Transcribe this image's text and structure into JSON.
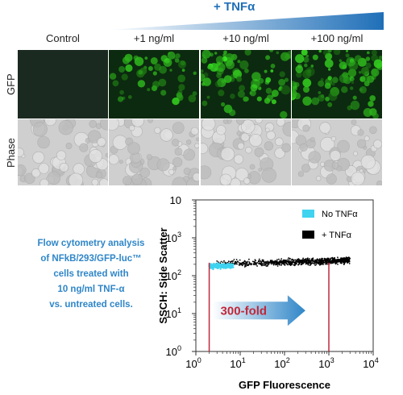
{
  "header": {
    "treatment_label": "+ TNFα"
  },
  "columns": [
    "Control",
    "+1 ng/ml",
    "+10 ng/ml",
    "+100 ng/ml"
  ],
  "rows": [
    "GFP",
    "Phase"
  ],
  "gfp_intensity": [
    0.0,
    0.45,
    0.75,
    0.85
  ],
  "caption_lines": [
    "Flow cytometry analysis",
    "of NFkB/293/GFP-luc™",
    "cells treated with",
    "10 ng/ml TNF-α",
    "vs. untreated cells."
  ],
  "plot": {
    "ylabel": "SSCH: Side Scatter",
    "xlabel": "GFP Fluorescence",
    "fold_label": "300-fold",
    "x_ticks": [
      {
        "base": "10",
        "exp": "0"
      },
      {
        "base": "10",
        "exp": "1"
      },
      {
        "base": "10",
        "exp": "2"
      },
      {
        "base": "10",
        "exp": "3"
      },
      {
        "base": "10",
        "exp": "4"
      }
    ],
    "y_ticks": [
      {
        "base": "10",
        "exp": "0"
      },
      {
        "base": "10",
        "exp": "1"
      },
      {
        "base": "10",
        "exp": "2"
      },
      {
        "base": "10",
        "exp": "3"
      },
      {
        "base": "10",
        "exp": ""
      }
    ],
    "legend": [
      {
        "label": "No TNFα",
        "color": "#3fd3f0"
      },
      {
        "label": "+ TNFα",
        "color": "#000000"
      }
    ],
    "colors": {
      "marker_line": "#c0283a",
      "fold_text": "#c0283a",
      "arrow": "#2f86c8"
    }
  },
  "chart_data": {
    "type": "scatter",
    "xlabel": "GFP Fluorescence",
    "ylabel": "SSCH: Side Scatter",
    "x_scale": "log",
    "y_scale": "log",
    "xlim": [
      1,
      10000
    ],
    "ylim": [
      1,
      10000
    ],
    "series": [
      {
        "name": "No TNFα",
        "color": "#3fd3f0",
        "x_range": [
          2,
          7
        ],
        "y_center": 180
      },
      {
        "name": "+ TNFα",
        "color": "#000000",
        "x_range": [
          2,
          3000
        ],
        "y_center": 220
      }
    ],
    "markers_x": [
      2,
      1000
    ],
    "annotation": "300-fold"
  }
}
